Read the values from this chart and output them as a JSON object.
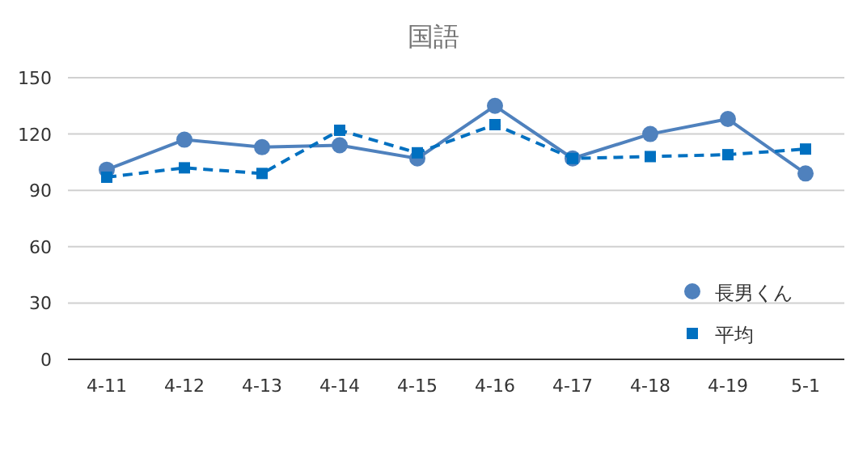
{
  "chart_data": {
    "type": "line",
    "title": "国語",
    "categories": [
      "4-11",
      "4-12",
      "4-13",
      "4-14",
      "4-15",
      "4-16",
      "4-17",
      "4-18",
      "4-19",
      "5-1"
    ],
    "series": [
      {
        "name": "長男くん",
        "color": "#4f81bd",
        "marker": "circle",
        "line_style": "solid",
        "values": [
          101,
          117,
          113,
          114,
          107,
          135,
          107,
          120,
          128,
          99
        ]
      },
      {
        "name": "平均",
        "color": "#0070c0",
        "marker": "square",
        "line_style": "dashed",
        "values": [
          97,
          102,
          99,
          122,
          110,
          125,
          107,
          108,
          109,
          112
        ]
      }
    ],
    "ylim": [
      0,
      150
    ],
    "yticks": [
      0,
      30,
      60,
      90,
      120,
      150
    ],
    "grid": "y",
    "legend": "bottom right"
  }
}
